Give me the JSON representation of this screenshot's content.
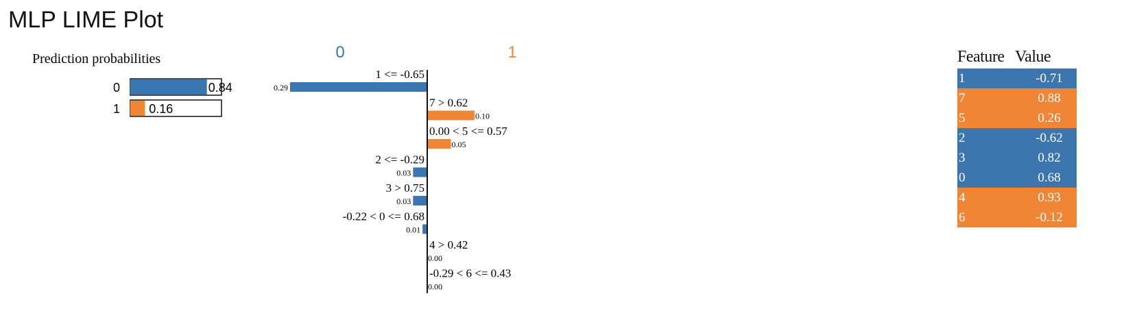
{
  "title": "MLP LIME Plot",
  "colors": {
    "class_0": "#3a76af",
    "class_1": "#ef8636",
    "row_neg": "#3d76ae",
    "row_pos": "#ef8636"
  },
  "chart_data": [
    {
      "type": "bar",
      "title": "Prediction probabilities",
      "categories": [
        "0",
        "1"
      ],
      "values": [
        0.84,
        0.16
      ],
      "value_labels": [
        "0.84",
        "0.16"
      ],
      "xlim": [
        0,
        1
      ],
      "orientation": "horizontal"
    },
    {
      "type": "bar",
      "orientation": "horizontal",
      "class_labels": [
        "0",
        "1"
      ],
      "bars": [
        {
          "label": "1 <= -0.65",
          "value": 0.29,
          "value_label": "0.29",
          "class": "0"
        },
        {
          "label": "7 > 0.62",
          "value": 0.1,
          "value_label": "0.10",
          "class": "1"
        },
        {
          "label": "0.00 < 5 <= 0.57",
          "value": 0.05,
          "value_label": "0.05",
          "class": "1"
        },
        {
          "label": "2 <= -0.29",
          "value": 0.03,
          "value_label": "0.03",
          "class": "0"
        },
        {
          "label": "3 > 0.75",
          "value": 0.03,
          "value_label": "0.03",
          "class": "0"
        },
        {
          "label": "-0.22 < 0 <= 0.68",
          "value": 0.01,
          "value_label": "0.01",
          "class": "0"
        },
        {
          "label": "4 > 0.42",
          "value": 0.0,
          "value_label": "0.00",
          "class": "1"
        },
        {
          "label": "-0.29 < 6 <= 0.43",
          "value": 0.0,
          "value_label": "0.00",
          "class": "1"
        }
      ],
      "scale_max": 0.29
    }
  ],
  "feature_table": {
    "headers": [
      "Feature",
      "Value"
    ],
    "rows": [
      {
        "feature": "1",
        "value": "-0.71",
        "class": "0"
      },
      {
        "feature": "7",
        "value": "0.88",
        "class": "1"
      },
      {
        "feature": "5",
        "value": "0.26",
        "class": "1"
      },
      {
        "feature": "2",
        "value": "-0.62",
        "class": "0"
      },
      {
        "feature": "3",
        "value": "0.82",
        "class": "0"
      },
      {
        "feature": "0",
        "value": "0.68",
        "class": "0"
      },
      {
        "feature": "4",
        "value": "0.93",
        "class": "1"
      },
      {
        "feature": "6",
        "value": "-0.12",
        "class": "1"
      }
    ]
  }
}
